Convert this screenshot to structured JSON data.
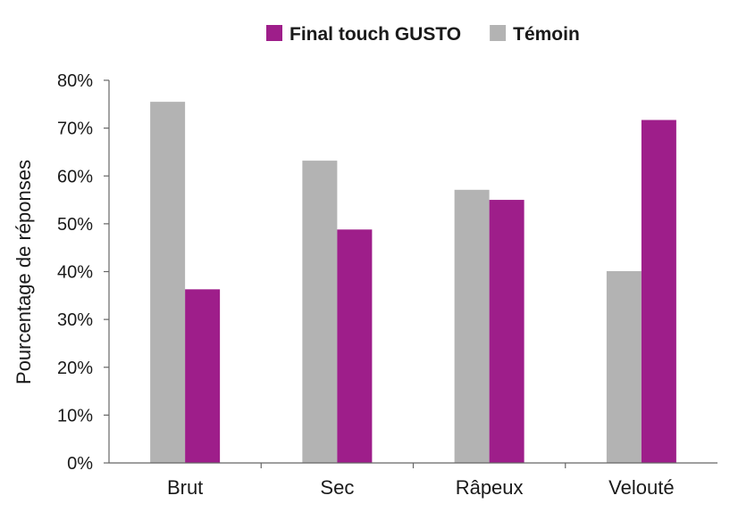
{
  "chart_data": {
    "type": "bar",
    "title": "",
    "xlabel": "",
    "ylabel": "Pourcentage de réponses",
    "categories": [
      "Brut",
      "Sec",
      "Râpeux",
      "Velouté"
    ],
    "series": [
      {
        "name": "Témoin",
        "color": "#b3b3b3",
        "values": [
          75.5,
          63.2,
          57.1,
          40.1
        ]
      },
      {
        "name": "Final touch GUSTO",
        "color": "#9e1e8a",
        "values": [
          36.3,
          48.8,
          55.0,
          71.7
        ]
      }
    ],
    "legend_order": [
      "Final touch GUSTO",
      "Témoin"
    ],
    "legend_position": "top",
    "ylim": [
      0,
      80
    ],
    "yticks": [
      0,
      10,
      20,
      30,
      40,
      50,
      60,
      70,
      80
    ],
    "ytick_labels": [
      "0%",
      "10%",
      "20%",
      "30%",
      "40%",
      "50%",
      "60%",
      "70%",
      "80%"
    ],
    "grid": false
  }
}
